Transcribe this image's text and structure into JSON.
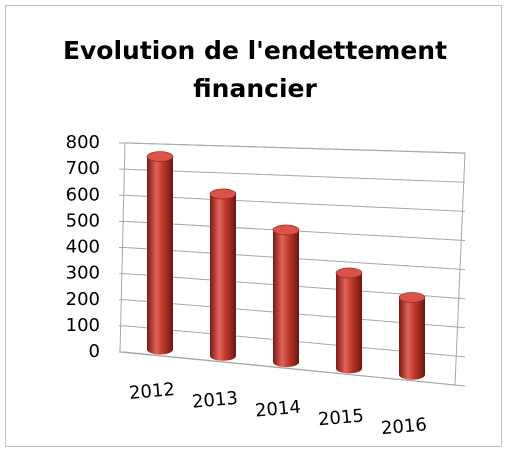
{
  "chart_data": {
    "type": "bar",
    "title": "Evolution de l'endettement financier",
    "categories": [
      "2012",
      "2013",
      "2014",
      "2015",
      "2016"
    ],
    "values": [
      730,
      600,
      480,
      340,
      270
    ],
    "color": "#c0392b",
    "ylim": [
      0,
      800
    ],
    "yticks": [
      0,
      100,
      200,
      300,
      400,
      500,
      600,
      700,
      800
    ],
    "grid": true
  }
}
